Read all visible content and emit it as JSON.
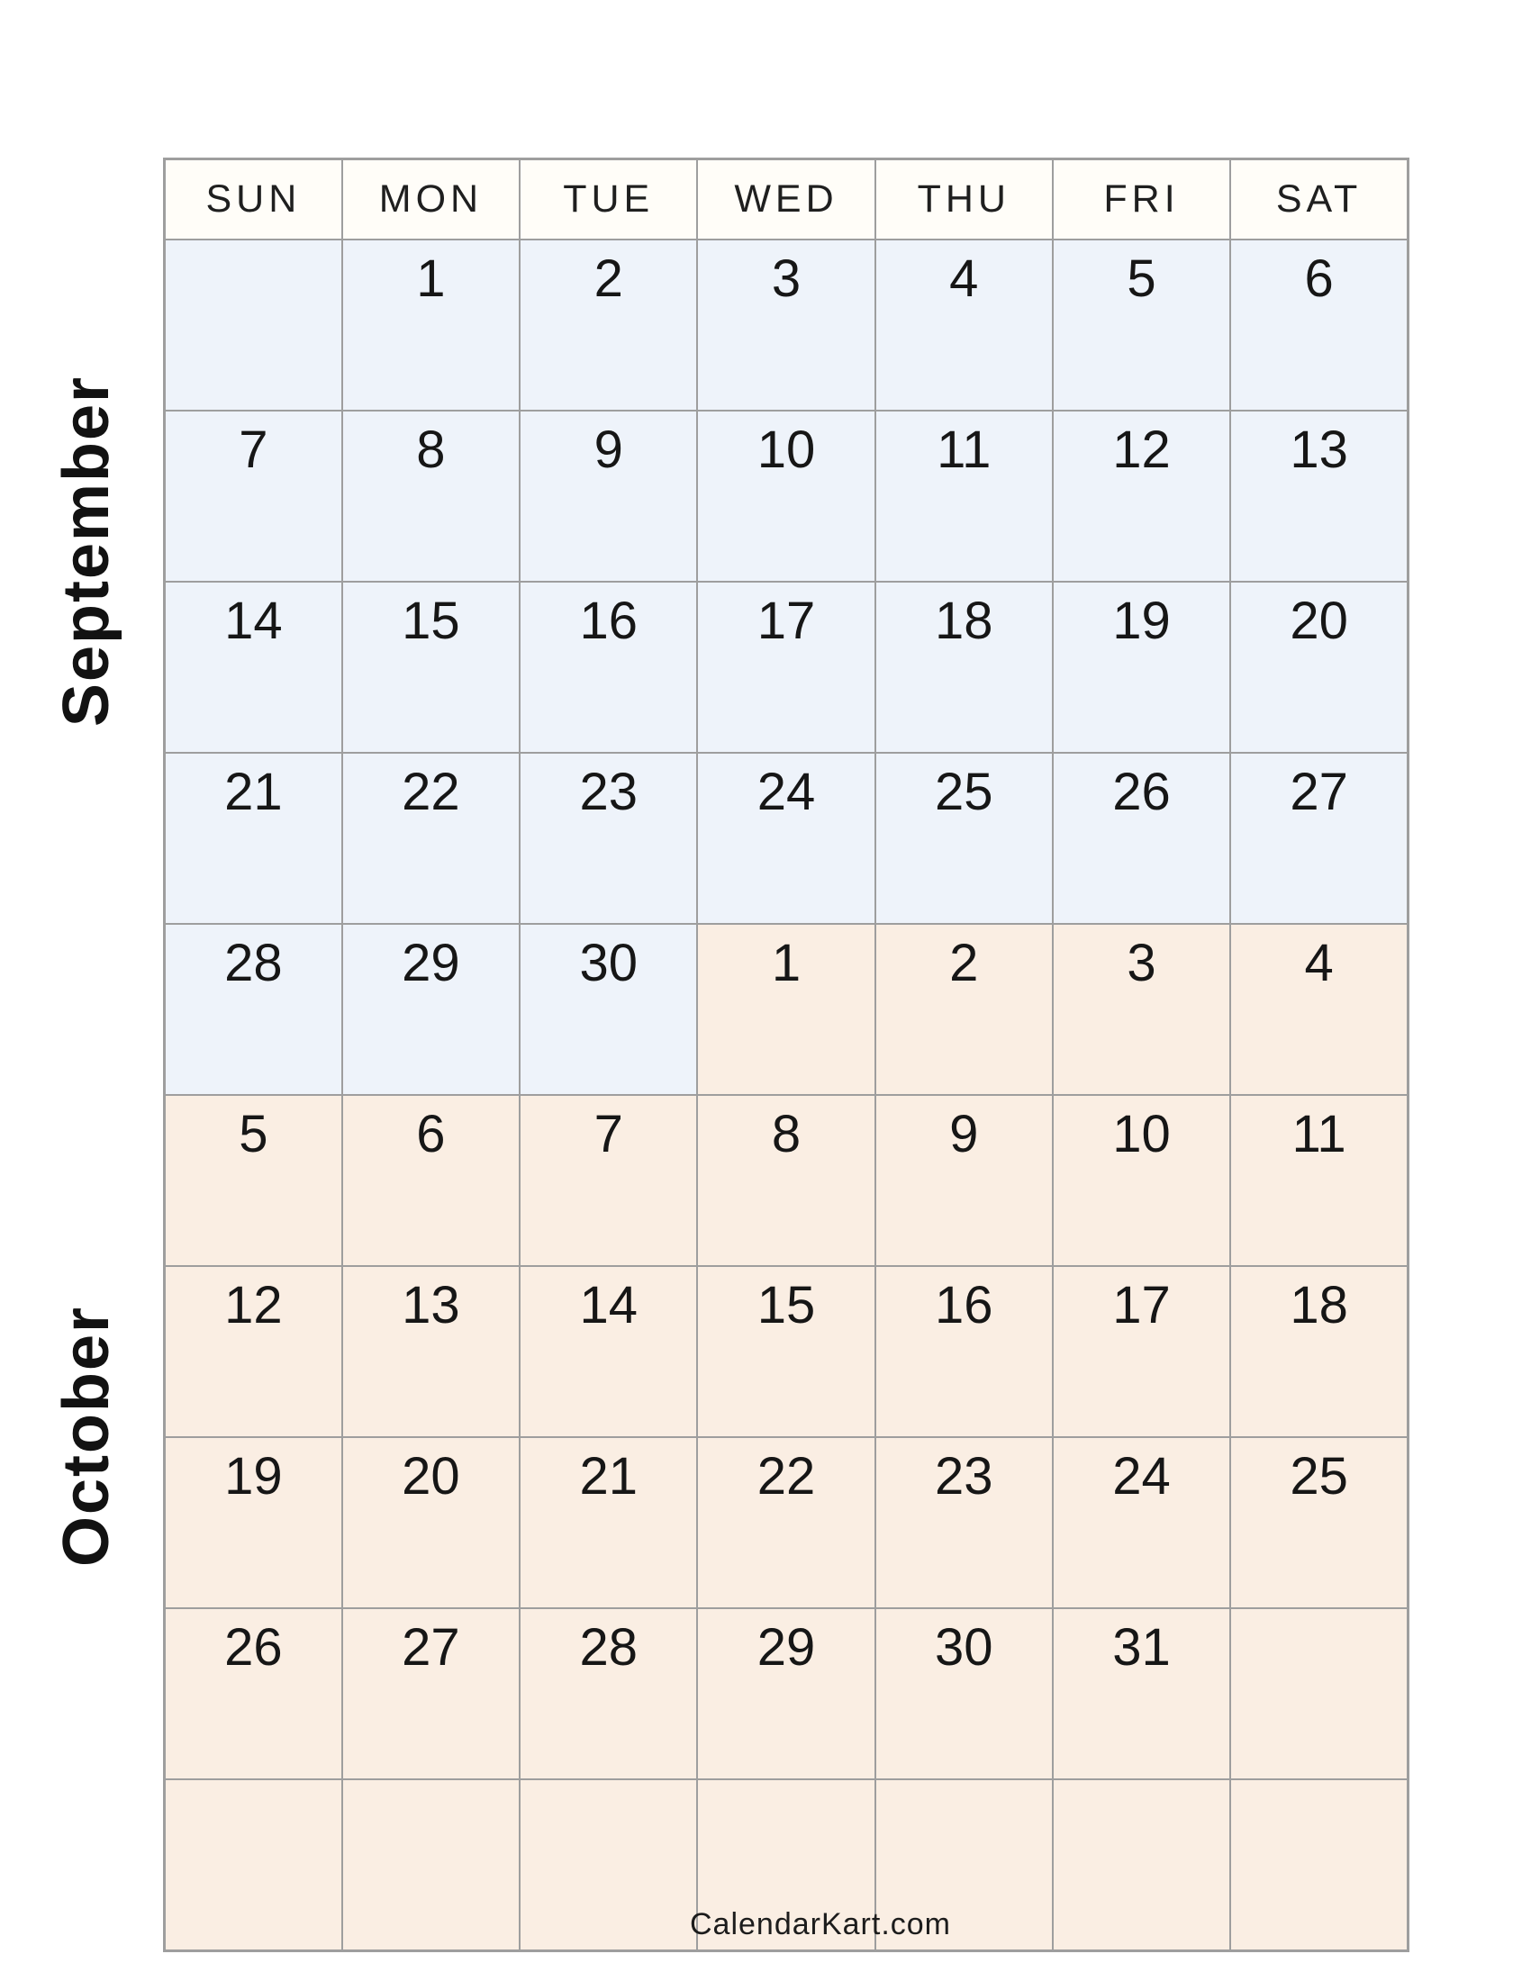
{
  "page": {
    "footer_brand": "CalendarKart.com"
  },
  "colors": {
    "september_bg": "#eef3fa",
    "october_bg": "#faeee3",
    "header_bg": "#fffdf8",
    "grid_border": "#9e9e9e",
    "header_text": "#1f1f1f",
    "day_text": "#161616",
    "label_text": "#121212",
    "footer_text": "#1c1c1c"
  },
  "calendar": {
    "months": [
      {
        "label": "September"
      },
      {
        "label": "October"
      }
    ],
    "day_headers": [
      "SUN",
      "MON",
      "TUE",
      "WED",
      "THU",
      "FRI",
      "SAT"
    ],
    "rows": [
      [
        {
          "d": "",
          "m": "sep"
        },
        {
          "d": "1",
          "m": "sep"
        },
        {
          "d": "2",
          "m": "sep"
        },
        {
          "d": "3",
          "m": "sep"
        },
        {
          "d": "4",
          "m": "sep"
        },
        {
          "d": "5",
          "m": "sep"
        },
        {
          "d": "6",
          "m": "sep"
        }
      ],
      [
        {
          "d": "7",
          "m": "sep"
        },
        {
          "d": "8",
          "m": "sep"
        },
        {
          "d": "9",
          "m": "sep"
        },
        {
          "d": "10",
          "m": "sep"
        },
        {
          "d": "11",
          "m": "sep"
        },
        {
          "d": "12",
          "m": "sep"
        },
        {
          "d": "13",
          "m": "sep"
        }
      ],
      [
        {
          "d": "14",
          "m": "sep"
        },
        {
          "d": "15",
          "m": "sep"
        },
        {
          "d": "16",
          "m": "sep"
        },
        {
          "d": "17",
          "m": "sep"
        },
        {
          "d": "18",
          "m": "sep"
        },
        {
          "d": "19",
          "m": "sep"
        },
        {
          "d": "20",
          "m": "sep"
        }
      ],
      [
        {
          "d": "21",
          "m": "sep"
        },
        {
          "d": "22",
          "m": "sep"
        },
        {
          "d": "23",
          "m": "sep"
        },
        {
          "d": "24",
          "m": "sep"
        },
        {
          "d": "25",
          "m": "sep"
        },
        {
          "d": "26",
          "m": "sep"
        },
        {
          "d": "27",
          "m": "sep"
        }
      ],
      [
        {
          "d": "28",
          "m": "sep"
        },
        {
          "d": "29",
          "m": "sep"
        },
        {
          "d": "30",
          "m": "sep"
        },
        {
          "d": "1",
          "m": "oct"
        },
        {
          "d": "2",
          "m": "oct"
        },
        {
          "d": "3",
          "m": "oct"
        },
        {
          "d": "4",
          "m": "oct"
        }
      ],
      [
        {
          "d": "5",
          "m": "oct"
        },
        {
          "d": "6",
          "m": "oct"
        },
        {
          "d": "7",
          "m": "oct"
        },
        {
          "d": "8",
          "m": "oct"
        },
        {
          "d": "9",
          "m": "oct"
        },
        {
          "d": "10",
          "m": "oct"
        },
        {
          "d": "11",
          "m": "oct"
        }
      ],
      [
        {
          "d": "12",
          "m": "oct"
        },
        {
          "d": "13",
          "m": "oct"
        },
        {
          "d": "14",
          "m": "oct"
        },
        {
          "d": "15",
          "m": "oct"
        },
        {
          "d": "16",
          "m": "oct"
        },
        {
          "d": "17",
          "m": "oct"
        },
        {
          "d": "18",
          "m": "oct"
        }
      ],
      [
        {
          "d": "19",
          "m": "oct"
        },
        {
          "d": "20",
          "m": "oct"
        },
        {
          "d": "21",
          "m": "oct"
        },
        {
          "d": "22",
          "m": "oct"
        },
        {
          "d": "23",
          "m": "oct"
        },
        {
          "d": "24",
          "m": "oct"
        },
        {
          "d": "25",
          "m": "oct"
        }
      ],
      [
        {
          "d": "26",
          "m": "oct"
        },
        {
          "d": "27",
          "m": "oct"
        },
        {
          "d": "28",
          "m": "oct"
        },
        {
          "d": "29",
          "m": "oct"
        },
        {
          "d": "30",
          "m": "oct"
        },
        {
          "d": "31",
          "m": "oct"
        },
        {
          "d": "",
          "m": "oct"
        }
      ],
      [
        {
          "d": "",
          "m": "oct"
        },
        {
          "d": "",
          "m": "oct"
        },
        {
          "d": "",
          "m": "oct"
        },
        {
          "d": "",
          "m": "oct"
        },
        {
          "d": "",
          "m": "oct"
        },
        {
          "d": "",
          "m": "oct"
        },
        {
          "d": "",
          "m": "oct"
        }
      ]
    ]
  }
}
